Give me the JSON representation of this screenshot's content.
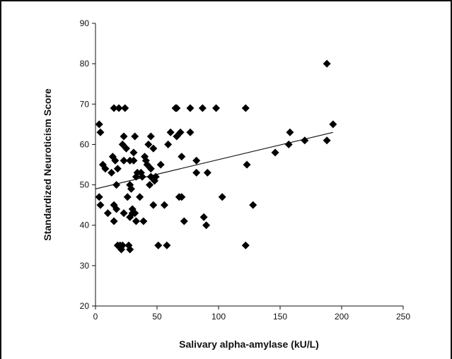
{
  "chart_data": {
    "type": "scatter",
    "title": "",
    "xlabel": "Salivary alpha-amylase (kU/L)",
    "ylabel": "Standardized Neuroticism Score",
    "xlim": [
      0,
      250
    ],
    "ylim": [
      20,
      90
    ],
    "xticks": [
      0,
      50,
      100,
      150,
      200,
      250
    ],
    "yticks": [
      20,
      30,
      40,
      50,
      60,
      70,
      80,
      90
    ],
    "grid": false,
    "legend": "none",
    "marker": "diamond",
    "marker_color": "#000000",
    "points": [
      [
        3,
        65
      ],
      [
        4,
        63
      ],
      [
        3,
        47
      ],
      [
        4,
        45
      ],
      [
        6,
        55
      ],
      [
        8,
        54
      ],
      [
        10,
        43
      ],
      [
        13,
        53
      ],
      [
        14,
        57
      ],
      [
        15,
        45
      ],
      [
        15,
        41
      ],
      [
        16,
        56
      ],
      [
        17,
        50
      ],
      [
        17,
        44
      ],
      [
        15,
        69
      ],
      [
        19,
        69
      ],
      [
        24,
        69
      ],
      [
        18,
        35
      ],
      [
        18,
        54
      ],
      [
        20,
        35
      ],
      [
        21,
        34
      ],
      [
        22,
        35
      ],
      [
        22,
        60
      ],
      [
        23,
        56
      ],
      [
        23,
        43
      ],
      [
        23,
        62
      ],
      [
        25,
        59
      ],
      [
        26,
        47
      ],
      [
        27,
        35
      ],
      [
        28,
        34
      ],
      [
        28,
        56
      ],
      [
        28,
        42
      ],
      [
        28,
        50
      ],
      [
        29,
        49
      ],
      [
        30,
        44
      ],
      [
        30,
        43
      ],
      [
        31,
        58
      ],
      [
        31,
        56
      ],
      [
        32,
        62
      ],
      [
        32,
        43
      ],
      [
        33,
        41
      ],
      [
        33,
        52
      ],
      [
        34,
        53
      ],
      [
        36,
        47
      ],
      [
        37,
        53
      ],
      [
        38,
        52
      ],
      [
        39,
        41
      ],
      [
        40,
        57
      ],
      [
        41,
        56
      ],
      [
        42,
        55
      ],
      [
        43,
        60
      ],
      [
        44,
        50
      ],
      [
        45,
        54
      ],
      [
        45,
        52
      ],
      [
        45,
        62
      ],
      [
        47,
        45
      ],
      [
        47,
        59
      ],
      [
        48,
        51
      ],
      [
        49,
        52
      ],
      [
        51,
        35
      ],
      [
        53,
        55
      ],
      [
        56,
        45
      ],
      [
        58,
        35
      ],
      [
        59,
        60
      ],
      [
        61,
        63
      ],
      [
        65,
        69
      ],
      [
        66,
        69
      ],
      [
        66,
        62
      ],
      [
        68,
        47
      ],
      [
        69,
        63
      ],
      [
        70,
        57
      ],
      [
        70,
        47
      ],
      [
        72,
        41
      ],
      [
        77,
        69
      ],
      [
        77,
        63
      ],
      [
        82,
        56
      ],
      [
        82,
        53
      ],
      [
        87,
        69
      ],
      [
        88,
        42
      ],
      [
        90,
        40
      ],
      [
        91,
        53
      ],
      [
        98,
        69
      ],
      [
        103,
        47
      ],
      [
        122,
        69
      ],
      [
        122,
        35
      ],
      [
        123,
        55
      ],
      [
        128,
        45
      ],
      [
        146,
        58
      ],
      [
        157,
        60
      ],
      [
        158,
        63
      ],
      [
        170,
        61
      ],
      [
        188,
        80
      ],
      [
        188,
        61
      ],
      [
        193,
        65
      ]
    ],
    "trendline": {
      "x": [
        0,
        193
      ],
      "y": [
        49,
        63
      ]
    }
  }
}
